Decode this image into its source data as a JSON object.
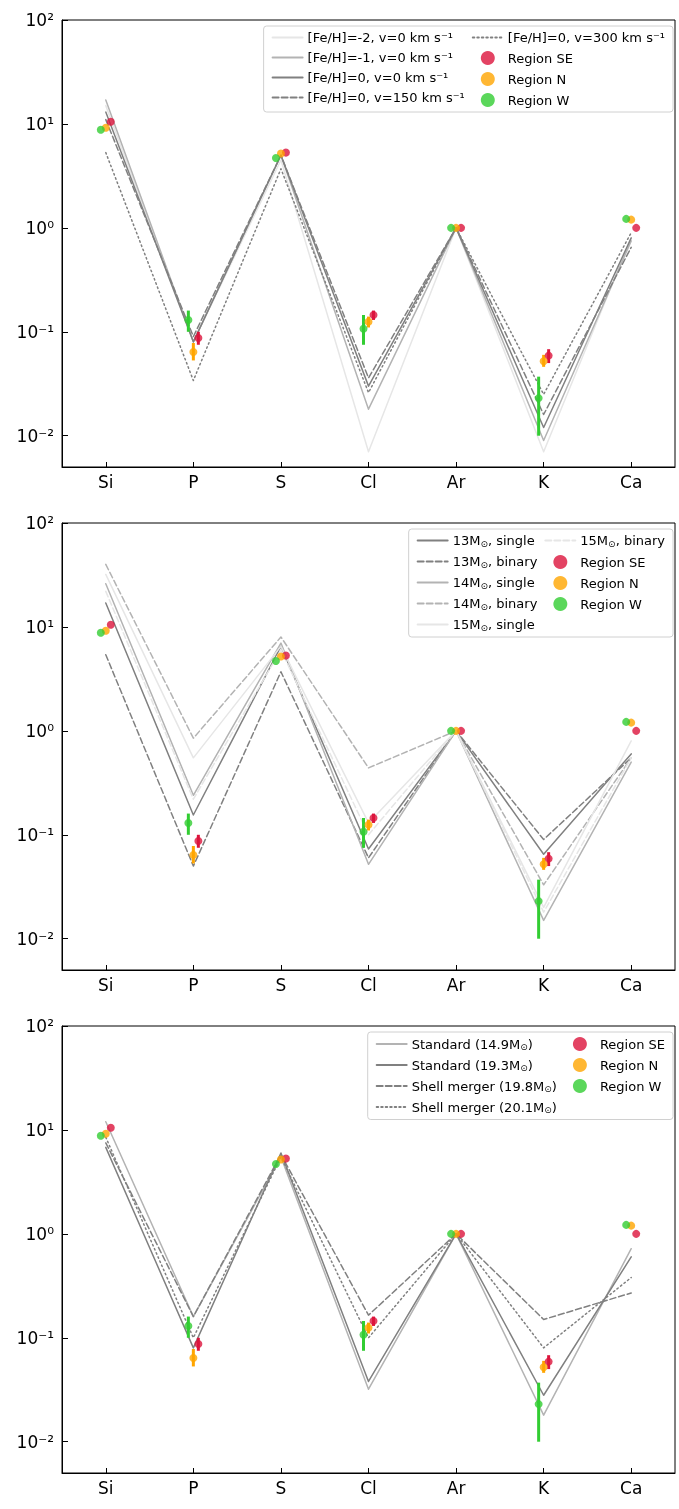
{
  "chart_data": [
    {
      "type": "line",
      "categories": [
        "Si",
        "P",
        "S",
        "Cl",
        "Ar",
        "K",
        "Ca"
      ],
      "log": true,
      "ylim": [
        0.005,
        100
      ],
      "yticks": [
        {
          "value": 0.01,
          "label": "10⁻²"
        },
        {
          "value": 0.1,
          "label": "10⁻¹"
        },
        {
          "value": 1,
          "label": "10⁰"
        },
        {
          "value": 10,
          "label": "10¹"
        },
        {
          "value": 100,
          "label": "10²"
        }
      ],
      "legend": "top right",
      "series": [
        {
          "name": "[Fe/H]=-2, v=0 km s⁻¹",
          "marker": "none",
          "line_style": "solid",
          "color": "#e6e6e6",
          "values": [
            15,
            0.08,
            4.5,
            0.007,
            1,
            0.007,
            0.8
          ]
        },
        {
          "name": "[Fe/H]=-1, v=0 km s⁻¹",
          "marker": "none",
          "line_style": "solid",
          "color": "#b3b3b3",
          "values": [
            17,
            0.08,
            5,
            0.018,
            1,
            0.009,
            0.75
          ]
        },
        {
          "name": "[Fe/H]=0, v=0 km s⁻¹",
          "marker": "none",
          "line_style": "solid",
          "color": "#808080",
          "values": [
            13,
            0.08,
            5,
            0.03,
            1,
            0.012,
            0.8
          ]
        },
        {
          "name": "[Fe/H]=0, v=150 km s⁻¹",
          "marker": "none",
          "line_style": "dashed",
          "color": "#808080",
          "values": [
            11,
            0.09,
            5,
            0.036,
            1,
            0.016,
            0.65
          ]
        },
        {
          "name": "[Fe/H]=0, v=300 km s⁻¹",
          "marker": "none",
          "line_style": "dotted",
          "color": "#808080",
          "values": [
            5.3,
            0.034,
            3.7,
            0.026,
            1,
            0.025,
            0.9
          ]
        },
        {
          "name": "Region SE",
          "type": "scatter",
          "marker": "circle",
          "color": "#dc143c",
          "values": [
            10.5,
            0.087,
            5.3,
            0.145,
            1,
            0.059,
            1
          ],
          "errors": [
            null,
            [
              0.075,
              0.1
            ],
            null,
            [
              0.13,
              0.16
            ],
            null,
            [
              0.05,
              0.068
            ],
            null
          ]
        },
        {
          "name": "Region N",
          "type": "scatter",
          "marker": "circle",
          "color": "#ffa500",
          "values": [
            9.2,
            0.064,
            5.2,
            0.125,
            1,
            0.052,
            1.2
          ],
          "errors": [
            null,
            [
              0.053,
              0.078
            ],
            null,
            [
              0.11,
              0.14
            ],
            null,
            [
              0.046,
              0.06
            ],
            null
          ]
        },
        {
          "name": "Region W",
          "type": "scatter",
          "marker": "circle",
          "color": "#32cd32",
          "values": [
            8.8,
            0.13,
            4.7,
            0.107,
            1,
            0.023,
            1.22
          ],
          "errors": [
            null,
            [
              0.1,
              0.16
            ],
            null,
            [
              0.075,
              0.145
            ],
            null,
            [
              0.01,
              0.037
            ],
            null
          ]
        }
      ]
    },
    {
      "type": "line",
      "categories": [
        "Si",
        "P",
        "S",
        "Cl",
        "Ar",
        "K",
        "Ca"
      ],
      "log": true,
      "ylim": [
        0.005,
        100
      ],
      "yticks": [
        {
          "value": 0.01,
          "label": "10⁻²"
        },
        {
          "value": 0.1,
          "label": "10⁻¹"
        },
        {
          "value": 1,
          "label": "10⁰"
        },
        {
          "value": 10,
          "label": "10¹"
        },
        {
          "value": 100,
          "label": "10²"
        }
      ],
      "legend": "top right",
      "series": [
        {
          "name": "13M$_{⊙}$, single",
          "marker": "none",
          "line_style": "solid",
          "color": "#808080",
          "values": [
            17,
            0.155,
            6.5,
            0.073,
            1,
            0.065,
            0.6
          ]
        },
        {
          "name": "13M$_{⊙}$, binary",
          "marker": "none",
          "line_style": "dashed",
          "color": "#808080",
          "values": [
            5.4,
            0.05,
            3.7,
            0.06,
            1,
            0.09,
            0.55
          ]
        },
        {
          "name": "14M$_{⊙}$, single",
          "marker": "none",
          "line_style": "solid",
          "color": "#b3b3b3",
          "values": [
            26,
            0.24,
            7,
            0.052,
            1,
            0.015,
            0.5
          ]
        },
        {
          "name": "14M$_{⊙}$, binary",
          "marker": "none",
          "line_style": "dashed",
          "color": "#b3b3b3",
          "values": [
            40,
            0.85,
            8,
            0.44,
            1,
            0.033,
            0.55
          ]
        },
        {
          "name": "15M$_{⊙}$, single",
          "marker": "none",
          "line_style": "solid",
          "color": "#e6e6e6",
          "values": [
            32,
            0.55,
            6.5,
            0.13,
            1,
            0.02,
            0.8
          ]
        },
        {
          "name": "15M$_{⊙}$, binary",
          "marker": "none",
          "line_style": "dashed",
          "color": "#e6e6e6",
          "values": [
            22,
            0.22,
            6,
            0.1,
            1,
            0.018,
            0.55
          ]
        },
        {
          "name": "Region SE",
          "type": "scatter",
          "marker": "circle",
          "color": "#dc143c",
          "values": [
            10.5,
            0.087,
            5.3,
            0.145,
            1,
            0.059,
            1
          ],
          "errors": [
            null,
            [
              0.075,
              0.1
            ],
            null,
            [
              0.13,
              0.16
            ],
            null,
            [
              0.05,
              0.068
            ],
            null
          ]
        },
        {
          "name": "Region N",
          "type": "scatter",
          "marker": "circle",
          "color": "#ffa500",
          "values": [
            9.2,
            0.064,
            5.2,
            0.125,
            1,
            0.052,
            1.2
          ],
          "errors": [
            null,
            [
              0.053,
              0.078
            ],
            null,
            [
              0.11,
              0.14
            ],
            null,
            [
              0.046,
              0.06
            ],
            null
          ]
        },
        {
          "name": "Region W",
          "type": "scatter",
          "marker": "circle",
          "color": "#32cd32",
          "values": [
            8.8,
            0.13,
            4.7,
            0.107,
            1,
            0.023,
            1.22
          ],
          "errors": [
            null,
            [
              0.1,
              0.16
            ],
            null,
            [
              0.075,
              0.145
            ],
            null,
            [
              0.01,
              0.037
            ],
            null
          ]
        }
      ]
    },
    {
      "type": "line",
      "categories": [
        "Si",
        "P",
        "S",
        "Cl",
        "Ar",
        "K",
        "Ca"
      ],
      "log": true,
      "ylim": [
        0.005,
        100
      ],
      "yticks": [
        {
          "value": 0.01,
          "label": "10⁻²"
        },
        {
          "value": 0.1,
          "label": "10⁻¹"
        },
        {
          "value": 1,
          "label": "10⁰"
        },
        {
          "value": 10,
          "label": "10¹"
        },
        {
          "value": 100,
          "label": "10²"
        }
      ],
      "legend": "top right",
      "series": [
        {
          "name": "Standard (14.9M$_{⊙}$)",
          "marker": "none",
          "line_style": "solid",
          "color": "#b3b3b3",
          "values": [
            12,
            0.16,
            5.5,
            0.032,
            1,
            0.018,
            0.72
          ]
        },
        {
          "name": "Standard (19.3M$_{⊙}$)",
          "marker": "none",
          "line_style": "solid",
          "color": "#808080",
          "values": [
            6.8,
            0.08,
            6,
            0.038,
            1,
            0.028,
            0.6
          ]
        },
        {
          "name": "Shell merger (19.8M$_{⊙}$)",
          "marker": "none",
          "line_style": "dashed",
          "color": "#808080",
          "values": [
            7.5,
            0.16,
            5.8,
            0.165,
            1,
            0.15,
            0.27
          ]
        },
        {
          "name": "Shell merger (20.1M$_{⊙}$)",
          "marker": "none",
          "line_style": "dotted",
          "color": "#808080",
          "values": [
            8.5,
            0.1,
            5.5,
            0.1,
            1,
            0.08,
            0.38
          ]
        },
        {
          "name": "Region SE",
          "type": "scatter",
          "marker": "circle",
          "color": "#dc143c",
          "values": [
            10.5,
            0.087,
            5.3,
            0.145,
            1,
            0.059,
            1
          ],
          "errors": [
            null,
            [
              0.075,
              0.1
            ],
            null,
            [
              0.13,
              0.16
            ],
            null,
            [
              0.05,
              0.068
            ],
            null
          ]
        },
        {
          "name": "Region N",
          "type": "scatter",
          "marker": "circle",
          "color": "#ffa500",
          "values": [
            9.2,
            0.064,
            5.2,
            0.125,
            1,
            0.052,
            1.2
          ],
          "errors": [
            null,
            [
              0.053,
              0.078
            ],
            null,
            [
              0.11,
              0.14
            ],
            null,
            [
              0.046,
              0.06
            ],
            null
          ]
        },
        {
          "name": "Region W",
          "type": "scatter",
          "marker": "circle",
          "color": "#32cd32",
          "values": [
            8.8,
            0.13,
            4.7,
            0.107,
            1,
            0.023,
            1.22
          ],
          "errors": [
            null,
            [
              0.1,
              0.16
            ],
            null,
            [
              0.075,
              0.145
            ],
            null,
            [
              0.01,
              0.037
            ],
            null
          ]
        }
      ]
    }
  ]
}
